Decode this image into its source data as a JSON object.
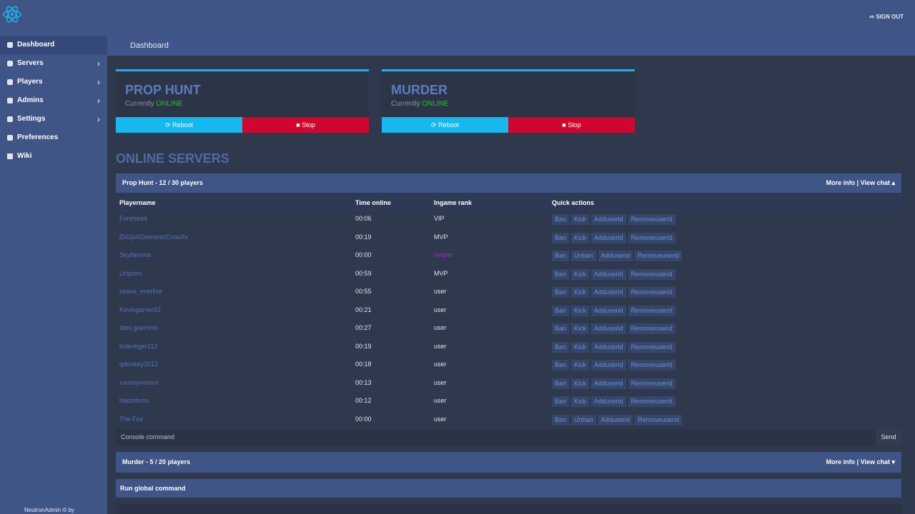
{
  "header": {
    "sign_out": "SIGN OUT"
  },
  "sidebar": {
    "items": [
      "Dashboard",
      "Servers",
      "Players",
      "Admins",
      "Settings",
      "Preferences",
      "Wiki"
    ],
    "footer": "NeutronAdmin © by"
  },
  "breadcrumb": "Dashboard",
  "cards": [
    {
      "name": "PROP HUNT",
      "status_label": "Currently",
      "status": "ONLINE",
      "reboot": "Reboot",
      "stop": "Stop"
    },
    {
      "name": "MURDER",
      "status_label": "Currently",
      "status": "ONLINE",
      "reboot": "Reboot",
      "stop": "Stop"
    }
  ],
  "section_title": "ONLINE SERVERS",
  "panels": [
    {
      "title": "Prop Hunt - 12 / 30 players",
      "links": "More info | View chat ▴",
      "columns": [
        "Playername",
        "Time online",
        "Ingame rank",
        "Quick actions"
      ],
      "rows": [
        [
          "Forehead",
          "00:06",
          "VIP",
          [
            "Ban",
            "Kick",
            "Adduserid",
            "Removeuserid"
          ]
        ],
        [
          "[DG]xXDemonicCrowXx",
          "00:19",
          "MVP",
          [
            "Ban",
            "Kick",
            "Adduserid",
            "Removeuserid"
          ]
        ],
        [
          "Skyllamma",
          "00:00",
          "Helper",
          [
            "Ban",
            "Unban",
            "Adduserid",
            "Removeuserid"
          ]
        ],
        [
          "Uniporn",
          "00:59",
          "MVP",
          [
            "Ban",
            "Kick",
            "Adduserid",
            "Removeuserid"
          ]
        ],
        [
          "seave_everlive",
          "00:55",
          "user",
          [
            "Ban",
            "Kick",
            "Adduserid",
            "Removeuserid"
          ]
        ],
        [
          "Kevingamer22",
          "00:21",
          "user",
          [
            "Ban",
            "Kick",
            "Adduserid",
            "Removeuserid"
          ]
        ],
        [
          "dani.guerrero",
          "00:27",
          "user",
          [
            "Ban",
            "Kick",
            "Adduserid",
            "Removeuserid"
          ]
        ],
        [
          "kideotiger112",
          "00:19",
          "user",
          [
            "Ban",
            "Kick",
            "Adduserid",
            "Removeuserid"
          ]
        ],
        [
          "qdonkey2012",
          "00:18",
          "user",
          [
            "Ban",
            "Kick",
            "Adduserid",
            "Removeuserid"
          ]
        ],
        [
          "xxminynemxx",
          "00:13",
          "user",
          [
            "Ban",
            "Kick",
            "Adduserid",
            "Removeuserid"
          ]
        ],
        [
          "blazinbros",
          "00:12",
          "user",
          [
            "Ban",
            "Kick",
            "Adduserid",
            "Removeuserid"
          ]
        ],
        [
          "The Fox",
          "00:00",
          "user",
          [
            "Ban",
            "Unban",
            "Adduserid",
            "Removeuserid"
          ]
        ]
      ],
      "console": "Console command",
      "send": "Send"
    },
    {
      "title": "Murder - 5 / 20 players",
      "links": "More info | View chat ▾"
    }
  ],
  "global": {
    "title": "Run global command"
  }
}
